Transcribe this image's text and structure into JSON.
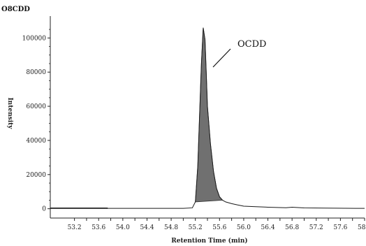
{
  "chart_data": {
    "type": "line",
    "title": "O8CDD",
    "xlabel": "Retention Time (min)",
    "ylabel": "Intensity",
    "xlim": [
      52.8,
      58.0
    ],
    "ylim": [
      -3000,
      112000
    ],
    "x_ticks": [
      "53.2",
      "53.4",
      "53.6",
      "53.8",
      "54.0",
      "54.2",
      "54.4",
      "54.6",
      "54.8",
      "55.0",
      "55.2",
      "55.4",
      "55.6",
      "55.8",
      "56.0",
      "56.2",
      "56.4",
      "56.6",
      "56.8",
      "57.0",
      "57.2",
      "57.4",
      "57.6",
      "57.8",
      "58.0"
    ],
    "x_tick_labels": [
      "53.2",
      "53.6",
      "54.0",
      "54.4",
      "54.8",
      "55.2",
      "55.6",
      "56.0",
      "56.4",
      "56.8",
      "57.2",
      "57.6",
      "58.0"
    ],
    "y_ticks": [
      0,
      20000,
      40000,
      60000,
      80000,
      100000
    ],
    "y_tick_labels": [
      "0",
      "20000",
      "40000",
      "60000",
      "80000",
      "100000"
    ],
    "series": [
      {
        "name": "",
        "x": [
          52.8,
          53.7,
          53.75,
          54.5,
          55.0,
          55.15,
          55.2,
          55.24,
          55.27,
          55.3,
          55.33,
          55.36,
          55.38,
          55.4,
          55.45,
          55.5,
          55.55,
          55.6,
          55.65,
          55.7,
          55.8,
          55.9,
          56.0,
          56.2,
          56.4,
          56.7,
          56.8,
          57.0,
          57.5,
          58.0
        ],
        "y": [
          300,
          300,
          200,
          200,
          200,
          500,
          4000,
          25000,
          55000,
          85000,
          106000,
          99000,
          80000,
          60000,
          38000,
          22000,
          12000,
          7000,
          5000,
          4000,
          3000,
          2200,
          1500,
          1200,
          900,
          600,
          900,
          500,
          300,
          200
        ]
      }
    ],
    "filled_peak": {
      "label": "OCDD",
      "start": 55.2,
      "end": 55.68
    },
    "colors": {
      "line": "#1a1a1a",
      "fill": "#707070"
    },
    "grid": false
  }
}
